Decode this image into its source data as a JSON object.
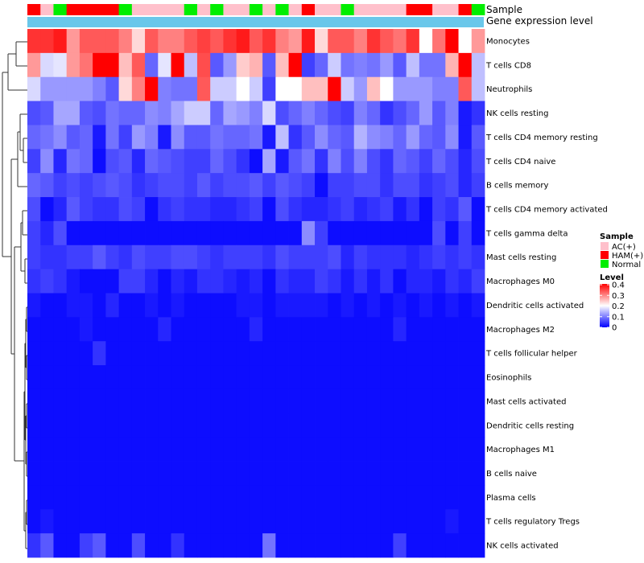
{
  "chart_data": {
    "type": "heatmap",
    "title": "",
    "annotation_labels": [
      "Sample",
      "Gene expression level"
    ],
    "sample_groups": [
      "HAM(+)",
      "AC(+)",
      "Normal",
      "HAM(+)",
      "HAM(+)",
      "HAM(+)",
      "HAM(+)",
      "Normal",
      "AC(+)",
      "AC(+)",
      "AC(+)",
      "AC(+)",
      "Normal",
      "AC(+)",
      "Normal",
      "AC(+)",
      "AC(+)",
      "Normal",
      "AC(+)",
      "Normal",
      "AC(+)",
      "HAM(+)",
      "AC(+)",
      "AC(+)",
      "Normal",
      "AC(+)",
      "AC(+)",
      "AC(+)",
      "AC(+)",
      "HAM(+)",
      "HAM(+)",
      "AC(+)",
      "AC(+)",
      "HAM(+)",
      "Normal"
    ],
    "expression_bar_color": "#6ac7ea",
    "rows": [
      {
        "label": "Monocytes",
        "values": [
          0.36,
          0.36,
          0.38,
          0.28,
          0.33,
          0.33,
          0.33,
          0.3,
          0.23,
          0.33,
          0.3,
          0.3,
          0.33,
          0.35,
          0.33,
          0.36,
          0.38,
          0.33,
          0.36,
          0.3,
          0.28,
          0.38,
          0.23,
          0.33,
          0.33,
          0.3,
          0.36,
          0.33,
          0.31,
          0.36,
          0.2,
          0.31,
          0.4,
          0.2,
          0.28
        ]
      },
      {
        "label": "T cells CD8",
        "values": [
          0.28,
          0.17,
          0.18,
          0.28,
          0.31,
          0.4,
          0.4,
          0.25,
          0.33,
          0.08,
          0.18,
          0.4,
          0.15,
          0.34,
          0.07,
          0.12,
          0.24,
          0.26,
          0.07,
          0.25,
          0.4,
          0.05,
          0.08,
          0.16,
          0.09,
          0.1,
          0.09,
          0.12,
          0.07,
          0.15,
          0.09,
          0.09,
          0.26,
          0.4,
          0.15
        ]
      },
      {
        "label": "Neutrophils",
        "values": [
          0.17,
          0.12,
          0.12,
          0.12,
          0.12,
          0.1,
          0.07,
          0.23,
          0.3,
          0.4,
          0.1,
          0.09,
          0.09,
          0.33,
          0.16,
          0.16,
          0.2,
          0.16,
          0.05,
          0.2,
          0.2,
          0.25,
          0.25,
          0.4,
          0.16,
          0.12,
          0.25,
          0.2,
          0.12,
          0.12,
          0.12,
          0.1,
          0.1,
          0.33,
          0.15
        ]
      },
      {
        "label": "NK cells resting",
        "values": [
          0.06,
          0.07,
          0.13,
          0.13,
          0.07,
          0.06,
          0.09,
          0.08,
          0.08,
          0.11,
          0.1,
          0.13,
          0.16,
          0.16,
          0.08,
          0.13,
          0.12,
          0.1,
          0.17,
          0.06,
          0.08,
          0.1,
          0.08,
          0.06,
          0.05,
          0.1,
          0.08,
          0.04,
          0.06,
          0.08,
          0.12,
          0.07,
          0.1,
          0.02,
          0.04
        ]
      },
      {
        "label": "T cells CD4 memory resting",
        "values": [
          0.08,
          0.09,
          0.11,
          0.07,
          0.08,
          0.02,
          0.09,
          0.05,
          0.12,
          0.1,
          0.02,
          0.11,
          0.07,
          0.07,
          0.09,
          0.08,
          0.08,
          0.09,
          0.02,
          0.15,
          0.04,
          0.07,
          0.11,
          0.08,
          0.07,
          0.14,
          0.11,
          0.1,
          0.08,
          0.12,
          0.08,
          0.07,
          0.11,
          0.02,
          0.07
        ]
      },
      {
        "label": "T cells CD4 naive",
        "values": [
          0.05,
          0.11,
          0.03,
          0.09,
          0.08,
          0.01,
          0.06,
          0.07,
          0.03,
          0.08,
          0.07,
          0.06,
          0.05,
          0.05,
          0.08,
          0.06,
          0.04,
          0.01,
          0.13,
          0.02,
          0.07,
          0.09,
          0.04,
          0.1,
          0.06,
          0.1,
          0.06,
          0.04,
          0.08,
          0.07,
          0.05,
          0.08,
          0.06,
          0.03,
          0.06
        ]
      },
      {
        "label": "B cells memory",
        "values": [
          0.08,
          0.07,
          0.05,
          0.06,
          0.05,
          0.06,
          0.07,
          0.06,
          0.04,
          0.05,
          0.06,
          0.06,
          0.05,
          0.07,
          0.05,
          0.06,
          0.06,
          0.07,
          0.05,
          0.07,
          0.06,
          0.05,
          0.01,
          0.05,
          0.05,
          0.06,
          0.06,
          0.04,
          0.06,
          0.06,
          0.04,
          0.05,
          0.06,
          0.03,
          0.05
        ]
      },
      {
        "label": "T cells CD4 memory activated",
        "values": [
          0.06,
          0.01,
          0.03,
          0.07,
          0.05,
          0.04,
          0.04,
          0.06,
          0.05,
          0.01,
          0.04,
          0.05,
          0.04,
          0.04,
          0.03,
          0.03,
          0.04,
          0.05,
          0.01,
          0.06,
          0.04,
          0.03,
          0.03,
          0.04,
          0.05,
          0.03,
          0.04,
          0.05,
          0.02,
          0.04,
          0.01,
          0.05,
          0.04,
          0.07,
          0.01
        ]
      },
      {
        "label": "T cells gamma delta",
        "values": [
          0.05,
          0.03,
          0.06,
          0.01,
          0.01,
          0.01,
          0.01,
          0.01,
          0.01,
          0.01,
          0.01,
          0.01,
          0.01,
          0.01,
          0.01,
          0.01,
          0.01,
          0.01,
          0.01,
          0.01,
          0.01,
          0.11,
          0.05,
          0.01,
          0.01,
          0.01,
          0.01,
          0.01,
          0.01,
          0.01,
          0.01,
          0.06,
          0.01,
          0.05,
          0.01
        ]
      },
      {
        "label": "Mast cells resting",
        "values": [
          0.05,
          0.04,
          0.04,
          0.05,
          0.05,
          0.07,
          0.05,
          0.04,
          0.06,
          0.05,
          0.05,
          0.06,
          0.06,
          0.05,
          0.04,
          0.05,
          0.05,
          0.05,
          0.04,
          0.06,
          0.05,
          0.05,
          0.05,
          0.06,
          0.03,
          0.05,
          0.04,
          0.04,
          0.04,
          0.03,
          0.04,
          0.05,
          0.04,
          0.05,
          0.04
        ]
      },
      {
        "label": "Macrophages M0",
        "values": [
          0.04,
          0.05,
          0.04,
          0.02,
          0.01,
          0.01,
          0.01,
          0.05,
          0.05,
          0.03,
          0.01,
          0.03,
          0.02,
          0.04,
          0.04,
          0.03,
          0.02,
          0.03,
          0.01,
          0.04,
          0.03,
          0.03,
          0.05,
          0.04,
          0.02,
          0.04,
          0.02,
          0.04,
          0.01,
          0.03,
          0.03,
          0.02,
          0.04,
          0.03,
          0.05
        ]
      },
      {
        "label": "Dendritic cells activated",
        "values": [
          0.02,
          0.01,
          0.01,
          0.02,
          0.02,
          0.01,
          0.03,
          0.01,
          0.01,
          0.02,
          0.01,
          0.02,
          0.01,
          0.01,
          0.01,
          0.01,
          0.02,
          0.02,
          0.01,
          0.02,
          0.02,
          0.02,
          0.02,
          0.01,
          0.02,
          0.01,
          0.02,
          0.01,
          0.02,
          0.01,
          0.02,
          0.01,
          0.02,
          0.01,
          0.02
        ]
      },
      {
        "label": "Macrophages M2",
        "values": [
          0.01,
          0.01,
          0.01,
          0.01,
          0.02,
          0.01,
          0.01,
          0.01,
          0.01,
          0.01,
          0.03,
          0.01,
          0.01,
          0.01,
          0.01,
          0.01,
          0.01,
          0.03,
          0.01,
          0.01,
          0.01,
          0.01,
          0.01,
          0.01,
          0.01,
          0.01,
          0.01,
          0.01,
          0.03,
          0.01,
          0.01,
          0.01,
          0.01,
          0.01,
          0.01
        ]
      },
      {
        "label": "T cells follicular helper",
        "values": [
          0.01,
          0.01,
          0.01,
          0.01,
          0.01,
          0.04,
          0.01,
          0.01,
          0.01,
          0.01,
          0.01,
          0.01,
          0.01,
          0.01,
          0.01,
          0.01,
          0.01,
          0.01,
          0.01,
          0.01,
          0.01,
          0.01,
          0.01,
          0.01,
          0.01,
          0.01,
          0.01,
          0.01,
          0.01,
          0.01,
          0.01,
          0.01,
          0.01,
          0.01,
          0.01
        ]
      },
      {
        "label": "Eosinophils",
        "values": [
          0.01,
          0.01,
          0.01,
          0.01,
          0.01,
          0.01,
          0.01,
          0.01,
          0.01,
          0.01,
          0.01,
          0.01,
          0.01,
          0.01,
          0.01,
          0.01,
          0.01,
          0.01,
          0.01,
          0.01,
          0.01,
          0.01,
          0.01,
          0.01,
          0.01,
          0.01,
          0.01,
          0.01,
          0.01,
          0.01,
          0.01,
          0.01,
          0.01,
          0.01,
          0.01
        ]
      },
      {
        "label": "Mast cells activated",
        "values": [
          0.01,
          0.01,
          0.01,
          0.01,
          0.01,
          0.01,
          0.01,
          0.01,
          0.01,
          0.01,
          0.01,
          0.01,
          0.01,
          0.01,
          0.01,
          0.01,
          0.01,
          0.01,
          0.01,
          0.01,
          0.01,
          0.01,
          0.01,
          0.01,
          0.01,
          0.01,
          0.01,
          0.01,
          0.01,
          0.01,
          0.01,
          0.01,
          0.01,
          0.01,
          0.01
        ]
      },
      {
        "label": "Dendritic cells resting",
        "values": [
          0.01,
          0.01,
          0.01,
          0.01,
          0.01,
          0.01,
          0.01,
          0.01,
          0.01,
          0.01,
          0.01,
          0.01,
          0.01,
          0.01,
          0.01,
          0.01,
          0.01,
          0.01,
          0.01,
          0.01,
          0.01,
          0.01,
          0.01,
          0.01,
          0.01,
          0.01,
          0.01,
          0.01,
          0.01,
          0.01,
          0.01,
          0.01,
          0.01,
          0.01,
          0.01
        ]
      },
      {
        "label": "Macrophages M1",
        "values": [
          0.01,
          0.01,
          0.01,
          0.01,
          0.01,
          0.01,
          0.01,
          0.01,
          0.01,
          0.01,
          0.01,
          0.01,
          0.01,
          0.01,
          0.01,
          0.01,
          0.01,
          0.01,
          0.01,
          0.01,
          0.01,
          0.01,
          0.01,
          0.01,
          0.01,
          0.01,
          0.01,
          0.01,
          0.01,
          0.01,
          0.01,
          0.01,
          0.01,
          0.01,
          0.01
        ]
      },
      {
        "label": "B cells naive",
        "values": [
          0.01,
          0.01,
          0.01,
          0.01,
          0.01,
          0.01,
          0.01,
          0.01,
          0.01,
          0.01,
          0.01,
          0.01,
          0.01,
          0.01,
          0.01,
          0.01,
          0.01,
          0.01,
          0.01,
          0.01,
          0.01,
          0.01,
          0.01,
          0.01,
          0.01,
          0.01,
          0.01,
          0.01,
          0.01,
          0.01,
          0.01,
          0.01,
          0.01,
          0.01,
          0.01
        ]
      },
      {
        "label": "Plasma cells",
        "values": [
          0.01,
          0.01,
          0.01,
          0.01,
          0.01,
          0.01,
          0.01,
          0.01,
          0.01,
          0.01,
          0.01,
          0.01,
          0.01,
          0.01,
          0.01,
          0.01,
          0.01,
          0.01,
          0.01,
          0.01,
          0.01,
          0.01,
          0.01,
          0.01,
          0.01,
          0.01,
          0.01,
          0.01,
          0.01,
          0.01,
          0.01,
          0.01,
          0.01,
          0.01,
          0.01
        ]
      },
      {
        "label": "T cells regulatory  Tregs",
        "values": [
          0.01,
          0.02,
          0.01,
          0.01,
          0.01,
          0.01,
          0.01,
          0.01,
          0.01,
          0.01,
          0.01,
          0.01,
          0.01,
          0.01,
          0.01,
          0.01,
          0.01,
          0.01,
          0.01,
          0.01,
          0.01,
          0.01,
          0.01,
          0.01,
          0.01,
          0.01,
          0.01,
          0.01,
          0.01,
          0.01,
          0.01,
          0.01,
          0.02,
          0.01,
          0.01
        ]
      },
      {
        "label": "NK cells activated",
        "values": [
          0.04,
          0.07,
          0.01,
          0.01,
          0.05,
          0.07,
          0.01,
          0.01,
          0.06,
          0.01,
          0.01,
          0.04,
          0.01,
          0.01,
          0.01,
          0.01,
          0.01,
          0.01,
          0.09,
          0.01,
          0.01,
          0.01,
          0.01,
          0.01,
          0.01,
          0.01,
          0.01,
          0.01,
          0.05,
          0.01,
          0.01,
          0.01,
          0.01,
          0.01,
          0.01
        ]
      }
    ],
    "legends": {
      "sample": {
        "title": "Sample",
        "entries": [
          {
            "label": "AC(+)",
            "color": "#ffc0cb"
          },
          {
            "label": "HAM(+)",
            "color": "#ff0000"
          },
          {
            "label": "Normal",
            "color": "#00ee00"
          }
        ]
      },
      "level": {
        "title": "Level",
        "ticks": [
          "0.4",
          "0.3",
          "0.2",
          "0.1",
          "0"
        ],
        "range": [
          0,
          0.4
        ],
        "colors": [
          "#0000ff",
          "#ffffff",
          "#ff0000"
        ]
      }
    },
    "dendrogram": "rows"
  }
}
